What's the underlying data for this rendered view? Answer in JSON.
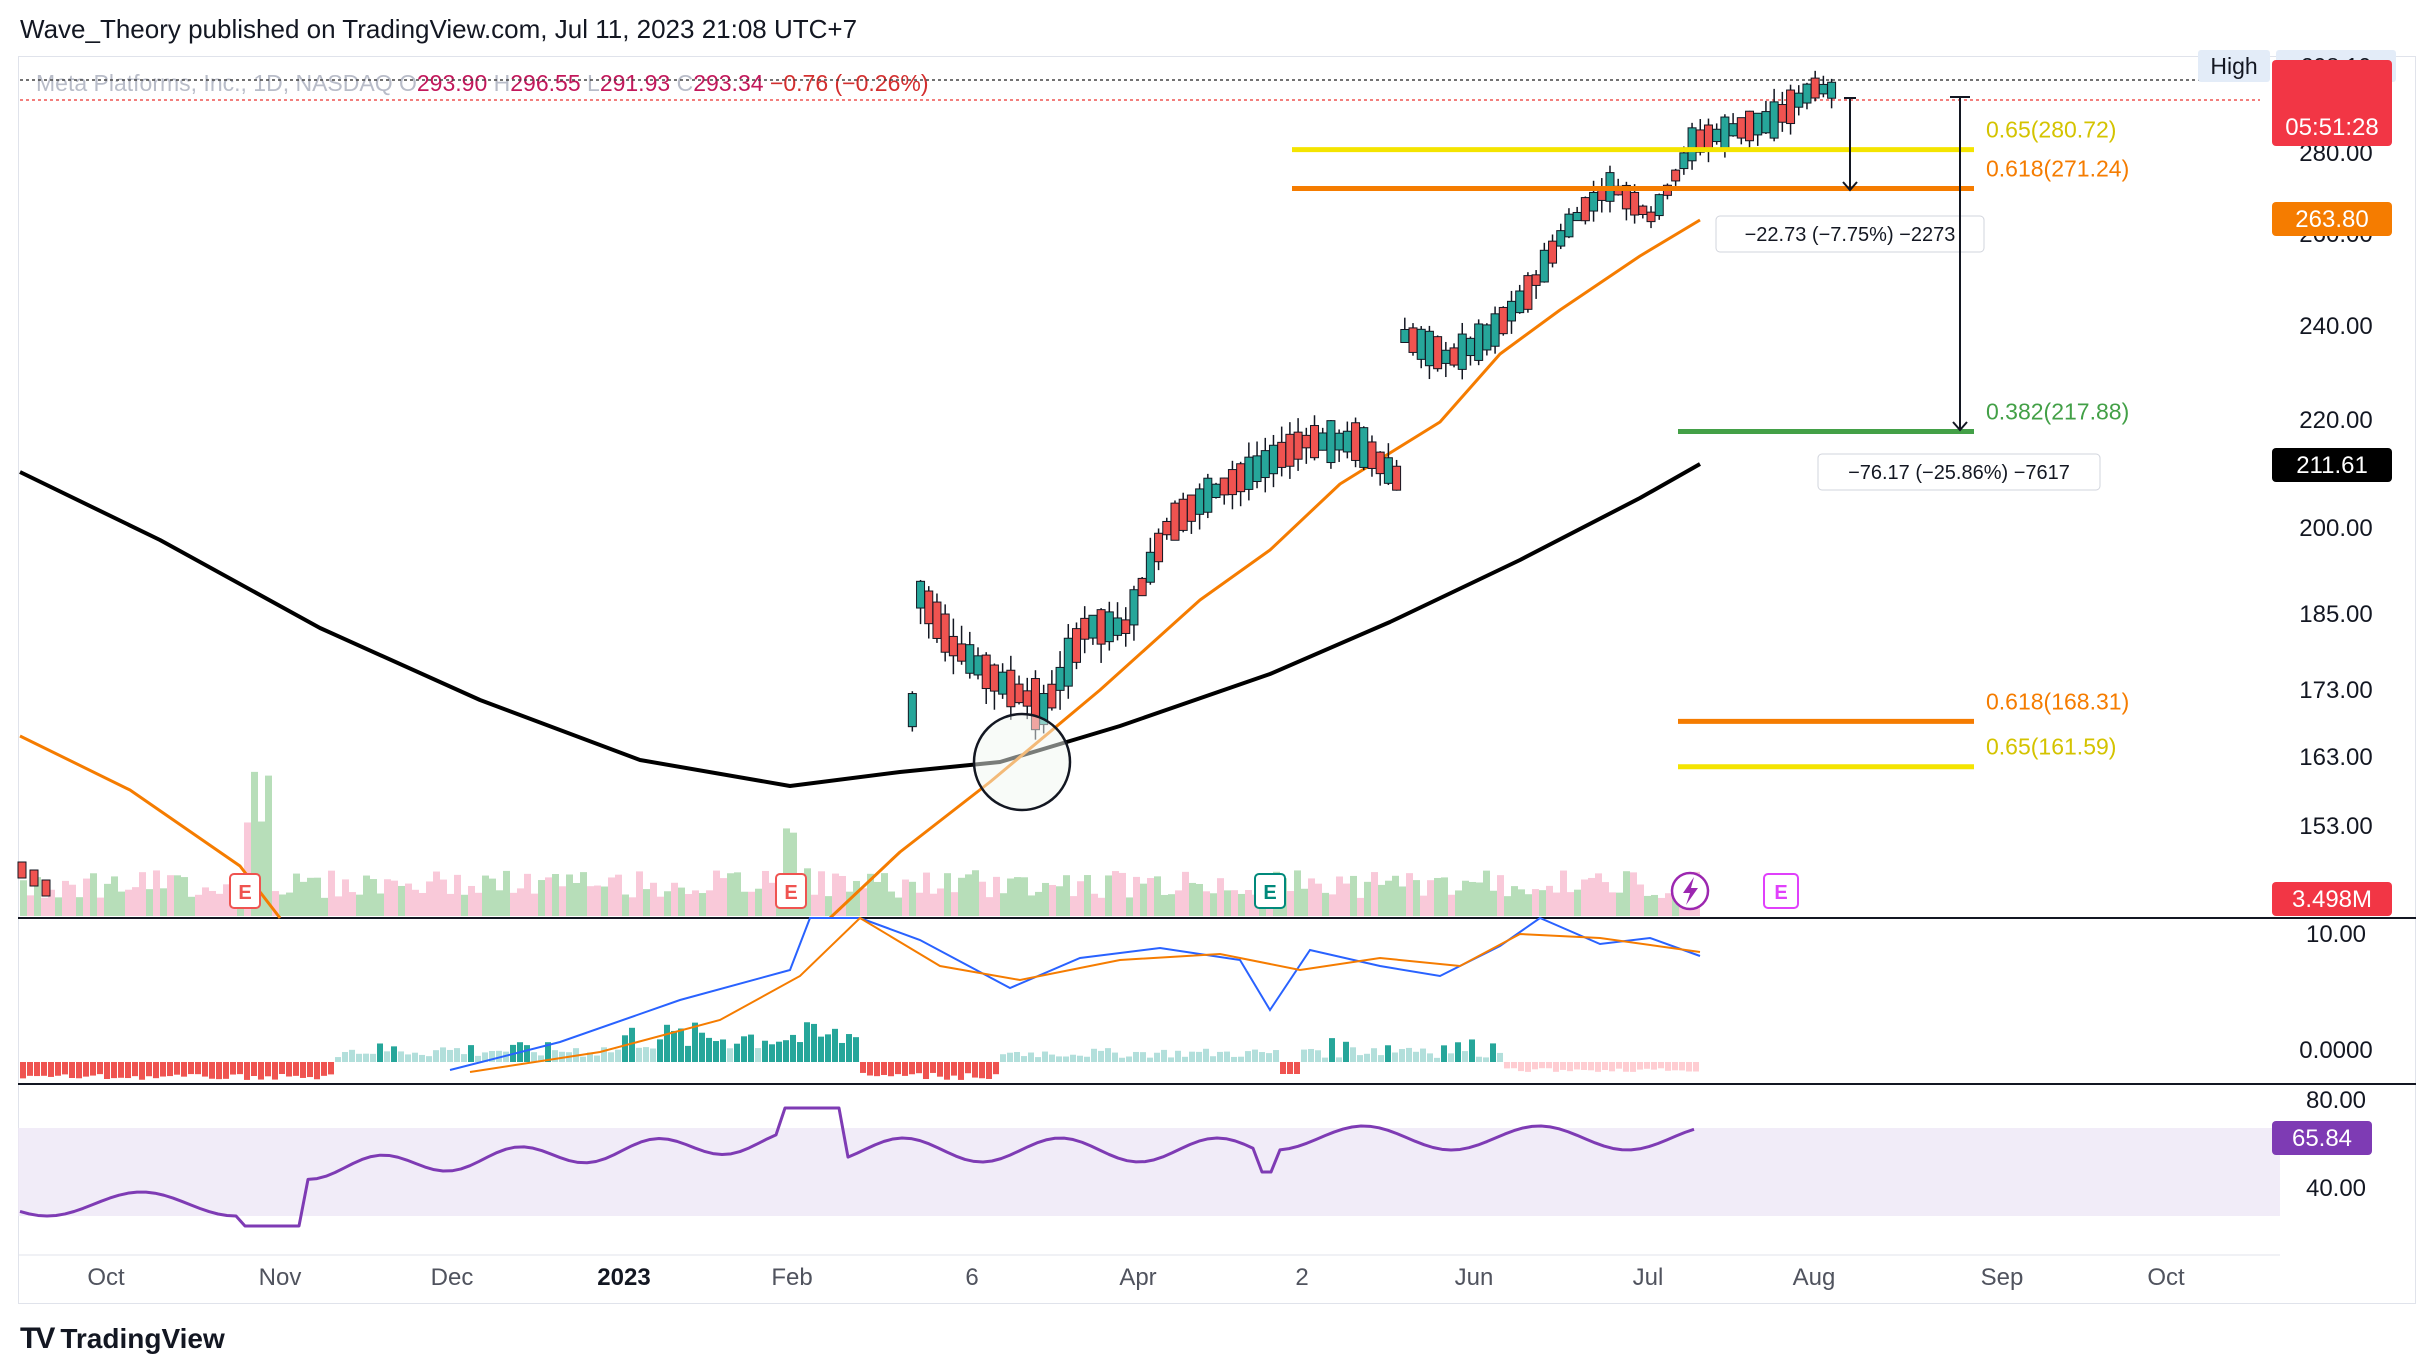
{
  "header": {
    "publisher": "Wave_Theory published on TradingView.com, Jul 11, 2023 21:08 UTC+7"
  },
  "footer": {
    "brand": "TradingView",
    "logo_icon": "tradingview-logo-icon"
  },
  "symbol_line": {
    "name": "Meta Platforms, Inc., 1D, NASDAQ",
    "o_label": "O",
    "o": "293.90",
    "h_label": "H",
    "h": "296.55",
    "l_label": "L",
    "l": "291.93",
    "c_label": "C",
    "c": "293.34",
    "change": "−0.76 (−0.26%)"
  },
  "colors": {
    "up": "#26a69a",
    "down": "#ef5350",
    "ma_fast": "#f57c00",
    "ma_slow": "#000000",
    "fib_065": "#f4e400",
    "fib_0618": "#f57c00",
    "fib_0382": "#43a047",
    "macd": "#2962ff",
    "signal": "#f57c00",
    "rsi": "#7e3bb4",
    "rsi_band": "#ede7f6"
  },
  "price_axis": {
    "ticks": [
      "280.00",
      "260.00",
      "240.00",
      "220.00",
      "200.00",
      "185.00",
      "173.00",
      "163.00",
      "153.00"
    ],
    "high_label": "High",
    "high_value": "298.10",
    "badges": {
      "countdown": "05:51:28",
      "ma_fast_value": "263.80",
      "ma_slow_value": "211.61",
      "volume_value": "3.498M"
    }
  },
  "macd_axis": {
    "ticks": [
      "10.00",
      "0.0000"
    ]
  },
  "rsi_axis": {
    "ticks": [
      "80.00",
      "40.00"
    ],
    "value": "65.84"
  },
  "time_axis": {
    "labels": [
      "Oct",
      "Nov",
      "Dec",
      "2023",
      "Feb",
      "6",
      "Apr",
      "2",
      "Jun",
      "Jul",
      "Aug",
      "Sep",
      "Oct"
    ]
  },
  "annotations": {
    "fib_upper_065": "0.65(280.72)",
    "fib_upper_0618": "0.618(271.24)",
    "fib_0382": "0.382(217.88)",
    "fib_lower_0618": "0.618(168.31)",
    "fib_lower_065": "0.65(161.59)",
    "measure_short": "−22.73 (−7.75%) −2273",
    "measure_long": "−76.17 (−25.86%) −7617",
    "earnings_marker": "E",
    "dividend_icon": "lightning-icon"
  },
  "chart_data": {
    "type": "candlestick",
    "title": "Meta Platforms, Inc., 1D, NASDAQ",
    "x_range": [
      "2022-09",
      "2023-10"
    ],
    "y_range": [
      145,
      300
    ],
    "price_path": [
      [
        "2023-01-31",
        151
      ],
      [
        "2023-02-02",
        189
      ],
      [
        "2023-02-08",
        180
      ],
      [
        "2023-02-15",
        175
      ],
      [
        "2023-02-24",
        170
      ],
      [
        "2023-03-03",
        183
      ],
      [
        "2023-03-10",
        183
      ],
      [
        "2023-03-17",
        200
      ],
      [
        "2023-03-24",
        206
      ],
      [
        "2023-03-31",
        210
      ],
      [
        "2023-04-10",
        216
      ],
      [
        "2023-04-19",
        216
      ],
      [
        "2023-04-26",
        209
      ],
      [
        "2023-04-27",
        238
      ],
      [
        "2023-05-05",
        233
      ],
      [
        "2023-05-12",
        238
      ],
      [
        "2023-05-19",
        248
      ],
      [
        "2023-05-26",
        263
      ],
      [
        "2023-06-02",
        272
      ],
      [
        "2023-06-09",
        264
      ],
      [
        "2023-06-16",
        282
      ],
      [
        "2023-06-23",
        285
      ],
      [
        "2023-06-30",
        287
      ],
      [
        "2023-07-07",
        294
      ],
      [
        "2023-07-11",
        293.34
      ]
    ],
    "last_ohlc": {
      "open": 293.9,
      "high": 296.55,
      "low": 291.93,
      "close": 293.34
    },
    "fib_levels": [
      {
        "ratio": 0.65,
        "value": 280.72
      },
      {
        "ratio": 0.618,
        "value": 271.24
      },
      {
        "ratio": 0.382,
        "value": 217.88
      },
      {
        "ratio": 0.618,
        "value": 168.31
      },
      {
        "ratio": 0.65,
        "value": 161.59
      }
    ],
    "moving_averages": [
      {
        "value_last": 263.8,
        "color": "#f57c00"
      },
      {
        "value_last": 211.61,
        "color": "#000000"
      }
    ],
    "rsi_last": 65.84,
    "volume_last": "3.498M"
  }
}
